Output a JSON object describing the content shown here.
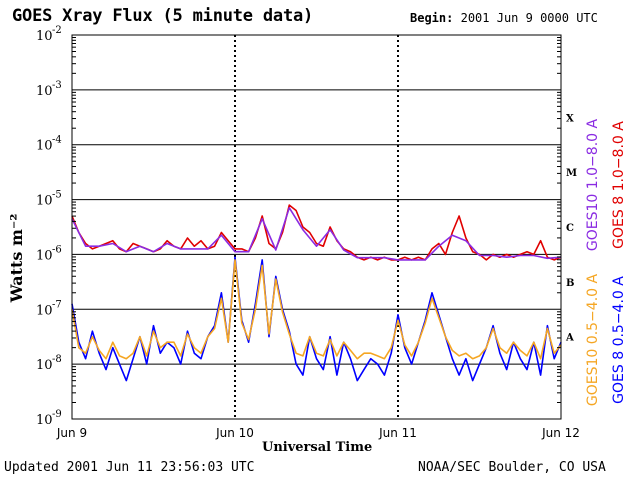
{
  "header": {
    "title": "GOES Xray Flux (5 minute data)",
    "begin_label": "Begin:",
    "begin_value": "2001 Jun 9 0000 UTC"
  },
  "footer": {
    "updated": "Updated 2001 Jun 11 23:56:03 UTC",
    "credit": "NOAA/SEC Boulder, CO USA"
  },
  "chart_data": {
    "type": "line",
    "title": "GOES Xray Flux (5 minute data)",
    "xlabel": "Universal Time",
    "ylabel": "Watts m⁻²",
    "yscale": "log",
    "ylim_exponent": [
      -9,
      -2
    ],
    "y_ticks": [
      {
        "base": "10",
        "exp": "-2"
      },
      {
        "base": "10",
        "exp": "-3"
      },
      {
        "base": "10",
        "exp": "-4"
      },
      {
        "base": "10",
        "exp": "-5"
      },
      {
        "base": "10",
        "exp": "-6"
      },
      {
        "base": "10",
        "exp": "-7"
      },
      {
        "base": "10",
        "exp": "-8"
      },
      {
        "base": "10",
        "exp": "-9"
      }
    ],
    "x_ticks": [
      "Jun 9",
      "Jun 10",
      "Jun 11",
      "Jun 12"
    ],
    "x_hours": [
      0,
      72
    ],
    "flare_classes": [
      {
        "label": "X",
        "exp": -4
      },
      {
        "label": "M",
        "exp": -5
      },
      {
        "label": "C",
        "exp": -6
      },
      {
        "label": "B",
        "exp": -7
      },
      {
        "label": "A",
        "exp": -8
      }
    ],
    "series": [
      {
        "name": "GOES 8 1.0–8.0 A",
        "color": "#e00000",
        "x": [
          0,
          1,
          2,
          3,
          4,
          5,
          6,
          7,
          8,
          9,
          10,
          11,
          12,
          13,
          14,
          15,
          16,
          17,
          18,
          19,
          20,
          21,
          22,
          23,
          24,
          25,
          26,
          27,
          28,
          29,
          30,
          31,
          32,
          33,
          34,
          35,
          36,
          37,
          38,
          39,
          40,
          41,
          42,
          43,
          44,
          45,
          46,
          47,
          48,
          49,
          50,
          51,
          52,
          53,
          54,
          55,
          56,
          57,
          58,
          59,
          60,
          61,
          62,
          63,
          64,
          65,
          66,
          67,
          68,
          69,
          70,
          71,
          72
        ],
        "log_flux": [
          -5.3,
          -5.6,
          -5.8,
          -5.9,
          -5.85,
          -5.8,
          -5.75,
          -5.9,
          -5.95,
          -5.8,
          -5.85,
          -5.9,
          -5.95,
          -5.9,
          -5.75,
          -5.85,
          -5.9,
          -5.7,
          -5.85,
          -5.75,
          -5.9,
          -5.85,
          -5.6,
          -5.75,
          -5.9,
          -5.9,
          -5.95,
          -5.7,
          -5.3,
          -5.8,
          -5.9,
          -5.6,
          -5.1,
          -5.2,
          -5.5,
          -5.6,
          -5.8,
          -5.85,
          -5.5,
          -5.75,
          -5.9,
          -5.95,
          -6.05,
          -6.1,
          -6.05,
          -6.1,
          -6.05,
          -6.1,
          -6.1,
          -6.05,
          -6.1,
          -6.05,
          -6.1,
          -5.9,
          -5.8,
          -6.0,
          -5.6,
          -5.3,
          -5.7,
          -5.95,
          -6.0,
          -6.1,
          -6.0,
          -6.05,
          -6.0,
          -6.05,
          -6.0,
          -5.95,
          -6.0,
          -5.75,
          -6.05,
          -6.1,
          -6.05
        ]
      },
      {
        "name": "GOES10 1.0–8.0 A",
        "color": "#8a2be2",
        "x": [
          0,
          2,
          4,
          6,
          8,
          10,
          12,
          14,
          16,
          18,
          20,
          22,
          24,
          26,
          28,
          30,
          32,
          34,
          36,
          38,
          40,
          42,
          44,
          46,
          48,
          50,
          52,
          54,
          56,
          58,
          60,
          62,
          64,
          66,
          68,
          70,
          72
        ],
        "log_flux": [
          -5.35,
          -5.85,
          -5.85,
          -5.8,
          -5.95,
          -5.85,
          -5.95,
          -5.8,
          -5.9,
          -5.9,
          -5.9,
          -5.65,
          -5.95,
          -5.95,
          -5.35,
          -5.92,
          -5.15,
          -5.55,
          -5.85,
          -5.55,
          -5.92,
          -6.06,
          -6.06,
          -6.06,
          -6.1,
          -6.1,
          -6.1,
          -5.85,
          -5.65,
          -5.75,
          -6.02,
          -6.02,
          -6.05,
          -6.02,
          -6.02,
          -6.07,
          -6.05
        ]
      },
      {
        "name": "GOES 8 0.5–4.0 A",
        "color": "#0000ff",
        "x": [
          0,
          1,
          2,
          3,
          4,
          5,
          6,
          7,
          8,
          9,
          10,
          11,
          12,
          13,
          14,
          15,
          16,
          17,
          18,
          19,
          20,
          21,
          22,
          23,
          24,
          25,
          26,
          27,
          28,
          29,
          30,
          31,
          32,
          33,
          34,
          35,
          36,
          37,
          38,
          39,
          40,
          41,
          42,
          43,
          44,
          45,
          46,
          47,
          48,
          49,
          50,
          51,
          52,
          53,
          54,
          55,
          56,
          57,
          58,
          59,
          60,
          61,
          62,
          63,
          64,
          65,
          66,
          67,
          68,
          69,
          70,
          71,
          72
        ],
        "log_flux": [
          -6.9,
          -7.6,
          -7.9,
          -7.4,
          -7.8,
          -8.1,
          -7.7,
          -8.0,
          -8.3,
          -7.9,
          -7.5,
          -8.0,
          -7.3,
          -7.8,
          -7.6,
          -7.7,
          -8.0,
          -7.4,
          -7.8,
          -7.9,
          -7.5,
          -7.3,
          -6.7,
          -7.6,
          -6.05,
          -7.2,
          -7.6,
          -6.9,
          -6.1,
          -7.5,
          -6.4,
          -7.0,
          -7.4,
          -8.0,
          -8.2,
          -7.5,
          -7.9,
          -8.1,
          -7.5,
          -8.2,
          -7.6,
          -7.9,
          -8.3,
          -8.1,
          -7.9,
          -8.0,
          -8.2,
          -7.8,
          -7.1,
          -7.7,
          -8.0,
          -7.6,
          -7.2,
          -6.7,
          -7.1,
          -7.5,
          -7.9,
          -8.2,
          -7.9,
          -8.3,
          -8.0,
          -7.7,
          -7.3,
          -7.8,
          -8.1,
          -7.6,
          -7.9,
          -8.1,
          -7.6,
          -8.2,
          -7.3,
          -7.9,
          -7.6
        ]
      },
      {
        "name": "GOES10 0.5–4.0 A",
        "color": "#f5a623",
        "x": [
          0,
          1,
          2,
          3,
          4,
          5,
          6,
          7,
          8,
          9,
          10,
          11,
          12,
          13,
          14,
          15,
          16,
          17,
          18,
          19,
          20,
          21,
          22,
          23,
          24,
          25,
          26,
          27,
          28,
          29,
          30,
          31,
          32,
          33,
          34,
          35,
          36,
          37,
          38,
          39,
          40,
          41,
          42,
          43,
          44,
          45,
          46,
          47,
          48,
          49,
          50,
          51,
          52,
          53,
          54,
          55,
          56,
          57,
          58,
          59,
          60,
          61,
          62,
          63,
          64,
          65,
          66,
          67,
          68,
          69,
          70,
          71,
          72
        ],
        "log_flux": [
          -7.0,
          -7.7,
          -7.8,
          -7.5,
          -7.75,
          -7.9,
          -7.6,
          -7.85,
          -7.9,
          -7.8,
          -7.5,
          -7.85,
          -7.4,
          -7.7,
          -7.6,
          -7.6,
          -7.85,
          -7.45,
          -7.7,
          -7.8,
          -7.5,
          -7.35,
          -6.8,
          -7.6,
          -6.1,
          -7.25,
          -7.55,
          -7.0,
          -6.2,
          -7.45,
          -6.45,
          -7.05,
          -7.45,
          -7.8,
          -7.85,
          -7.5,
          -7.8,
          -7.85,
          -7.55,
          -7.85,
          -7.6,
          -7.75,
          -7.9,
          -7.8,
          -7.8,
          -7.85,
          -7.9,
          -7.7,
          -7.2,
          -7.65,
          -7.85,
          -7.6,
          -7.25,
          -6.8,
          -7.15,
          -7.5,
          -7.75,
          -7.85,
          -7.8,
          -7.9,
          -7.85,
          -7.7,
          -7.35,
          -7.7,
          -7.8,
          -7.6,
          -7.75,
          -7.85,
          -7.6,
          -7.9,
          -7.35,
          -7.8,
          -7.65
        ]
      }
    ],
    "legend": [
      {
        "text": "GOES10 1.0−8.0 A",
        "color": "#8a2be2"
      },
      {
        "text": "GOES 8 1.0−8.0 A",
        "color": "#e00000"
      },
      {
        "text": "GOES10 0.5−4.0 A",
        "color": "#f5a623"
      },
      {
        "text": "GOES 8 0.5−4.0 A",
        "color": "#0000ff"
      }
    ],
    "legend_placement": "right-vertical"
  }
}
